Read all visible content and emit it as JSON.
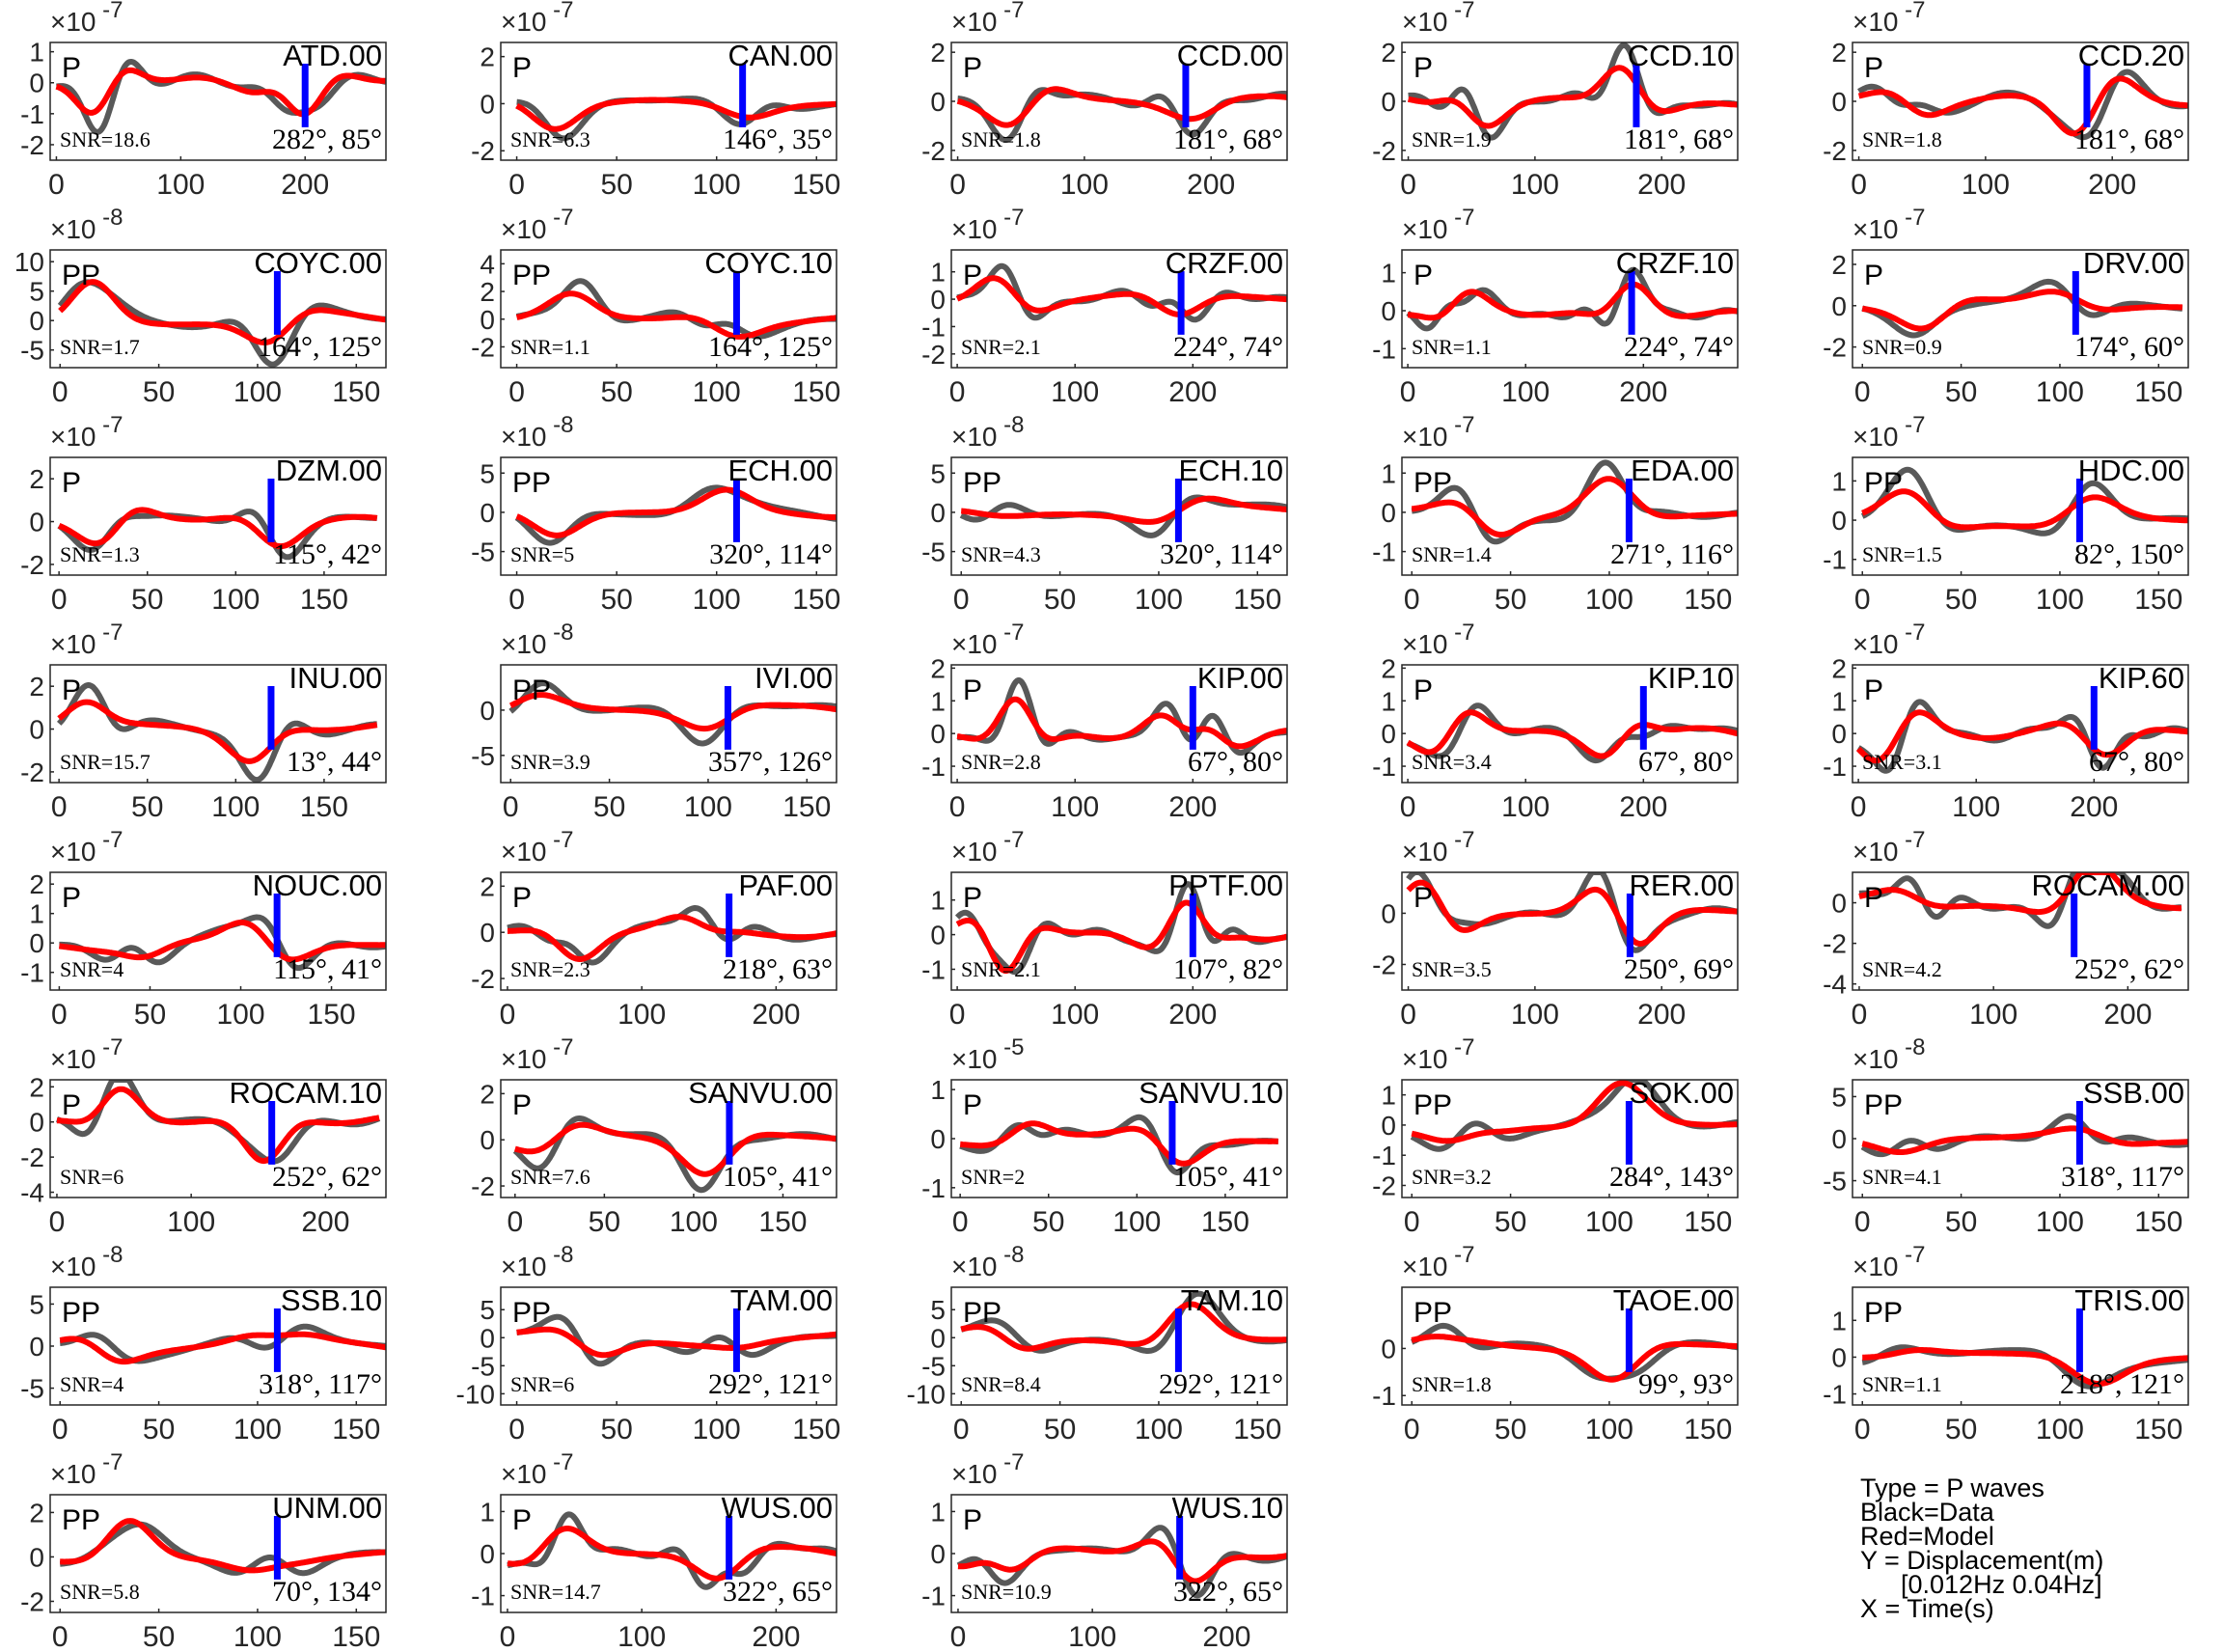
{
  "legend": {
    "type": "Type = P waves",
    "data": "Black=Data",
    "model": "Red=Model",
    "y": "Y = Displacement(m)",
    "band": "[0.012Hz 0.04Hz]",
    "x": "X = Time(s)"
  },
  "colors": {
    "data": "#595959",
    "model": "#ff0000",
    "marker": "#0000ff",
    "axes": "#262626"
  },
  "chart_data": [
    {
      "type": "line",
      "station": "ATD.00",
      "phase": "P",
      "snr": "SNR=18.6",
      "az": "282°, 85°",
      "exp": "-7",
      "xticks": [
        0,
        100,
        200
      ],
      "xlim": [
        -5,
        265
      ],
      "yticks": [
        -2,
        -1,
        0,
        1
      ],
      "ylim": [
        -2.5,
        1.3
      ],
      "pick": 200,
      "amp": 1.6,
      "seed": 3
    },
    {
      "type": "line",
      "station": "CAN.00",
      "phase": "P",
      "snr": "SNR=6.3",
      "az": "146°, 35°",
      "exp": "-7",
      "xticks": [
        0,
        50,
        100,
        150
      ],
      "xlim": [
        -8,
        160
      ],
      "yticks": [
        -2,
        0,
        2
      ],
      "ylim": [
        -2.4,
        2.6
      ],
      "pick": 113,
      "amp": 1.5,
      "seed": 5
    },
    {
      "type": "line",
      "station": "CCD.00",
      "phase": "P",
      "snr": "SNR=1.8",
      "az": "181°, 68°",
      "exp": "-7",
      "xticks": [
        0,
        100,
        200
      ],
      "xlim": [
        -5,
        260
      ],
      "yticks": [
        -2,
        0,
        2
      ],
      "ylim": [
        -2.4,
        2.4
      ],
      "pick": 180,
      "amp": 2.0,
      "seed": 7
    },
    {
      "type": "line",
      "station": "CCD.10",
      "phase": "P",
      "snr": "SNR=1.9",
      "az": "181°, 68°",
      "exp": "-7",
      "xticks": [
        0,
        100,
        200
      ],
      "xlim": [
        -5,
        260
      ],
      "yticks": [
        -2,
        0,
        2
      ],
      "ylim": [
        -2.4,
        2.4
      ],
      "pick": 180,
      "amp": 2.0,
      "seed": 9
    },
    {
      "type": "line",
      "station": "CCD.20",
      "phase": "P",
      "snr": "SNR=1.8",
      "az": "181°, 68°",
      "exp": "-7",
      "xticks": [
        0,
        100,
        200
      ],
      "xlim": [
        -5,
        260
      ],
      "yticks": [
        -2,
        0,
        2
      ],
      "ylim": [
        -2.4,
        2.4
      ],
      "pick": 180,
      "amp": 2.0,
      "seed": 11
    },
    {
      "type": "line",
      "station": "COYC.00",
      "phase": "PP",
      "snr": "SNR=1.7",
      "az": "164°, 125°",
      "exp": "-8",
      "xticks": [
        0,
        50,
        100,
        150
      ],
      "xlim": [
        -5,
        165
      ],
      "yticks": [
        -5,
        0,
        5,
        10
      ],
      "ylim": [
        -8,
        12
      ],
      "pick": 110,
      "amp": 9,
      "seed": 13
    },
    {
      "type": "line",
      "station": "COYC.10",
      "phase": "PP",
      "snr": "SNR=1.1",
      "az": "164°, 125°",
      "exp": "-7",
      "xticks": [
        0,
        50,
        100,
        150
      ],
      "xlim": [
        -8,
        160
      ],
      "yticks": [
        -2,
        0,
        2,
        4
      ],
      "ylim": [
        -3.5,
        5
      ],
      "pick": 110,
      "amp": 3,
      "seed": 15
    },
    {
      "type": "line",
      "station": "CRZF.00",
      "phase": "P",
      "snr": "SNR=2.1",
      "az": "224°, 74°",
      "exp": "-7",
      "xticks": [
        0,
        100,
        200
      ],
      "xlim": [
        -5,
        280
      ],
      "yticks": [
        -2,
        -1,
        0,
        1
      ],
      "ylim": [
        -2.5,
        1.8
      ],
      "pick": 190,
      "amp": 1.6,
      "seed": 17
    },
    {
      "type": "line",
      "station": "CRZF.10",
      "phase": "P",
      "snr": "SNR=1.1",
      "az": "224°, 74°",
      "exp": "-7",
      "xticks": [
        0,
        100,
        200
      ],
      "xlim": [
        -5,
        280
      ],
      "yticks": [
        -1,
        0,
        1
      ],
      "ylim": [
        -1.5,
        1.6
      ],
      "pick": 190,
      "amp": 1.1,
      "seed": 19
    },
    {
      "type": "line",
      "station": "DRV.00",
      "phase": "P",
      "snr": "SNR=0.9",
      "az": "174°, 60°",
      "exp": "-7",
      "xticks": [
        0,
        50,
        100,
        150
      ],
      "xlim": [
        -5,
        165
      ],
      "yticks": [
        -2,
        0,
        2
      ],
      "ylim": [
        -3,
        2.7
      ],
      "pick": 108,
      "amp": 2.2,
      "seed": 21
    },
    {
      "type": "line",
      "station": "DZM.00",
      "phase": "P",
      "snr": "SNR=1.3",
      "az": "115°, 42°",
      "exp": "-7",
      "xticks": [
        0,
        50,
        100,
        150
      ],
      "xlim": [
        -5,
        185
      ],
      "yticks": [
        -2,
        0,
        2
      ],
      "ylim": [
        -2.5,
        3
      ],
      "pick": 120,
      "amp": 2.0,
      "seed": 23
    },
    {
      "type": "line",
      "station": "ECH.00",
      "phase": "PP",
      "snr": "SNR=5",
      "az": "320°, 114°",
      "exp": "-8",
      "xticks": [
        0,
        50,
        100,
        150
      ],
      "xlim": [
        -8,
        160
      ],
      "yticks": [
        -5,
        0,
        5
      ],
      "ylim": [
        -8,
        7
      ],
      "pick": 110,
      "amp": 5.5,
      "seed": 25
    },
    {
      "type": "line",
      "station": "ECH.10",
      "phase": "PP",
      "snr": "SNR=4.3",
      "az": "320°, 114°",
      "exp": "-8",
      "xticks": [
        0,
        50,
        100,
        150
      ],
      "xlim": [
        -5,
        165
      ],
      "yticks": [
        -5,
        0,
        5
      ],
      "ylim": [
        -8,
        7
      ],
      "pick": 110,
      "amp": 5.5,
      "seed": 27
    },
    {
      "type": "line",
      "station": "EDA.00",
      "phase": "PP",
      "snr": "SNR=1.4",
      "az": "271°, 116°",
      "exp": "-7",
      "xticks": [
        0,
        50,
        100,
        150
      ],
      "xlim": [
        -5,
        165
      ],
      "yticks": [
        -1,
        0,
        1
      ],
      "ylim": [
        -1.6,
        1.4
      ],
      "pick": 110,
      "amp": 1.2,
      "seed": 29
    },
    {
      "type": "line",
      "station": "HDC.00",
      "phase": "PP",
      "snr": "SNR=1.5",
      "az": "82°, 150°",
      "exp": "-7",
      "xticks": [
        0,
        50,
        100,
        150
      ],
      "xlim": [
        -5,
        165
      ],
      "yticks": [
        -1,
        0,
        1
      ],
      "ylim": [
        -1.4,
        1.6
      ],
      "pick": 110,
      "amp": 1.2,
      "seed": 31
    },
    {
      "type": "line",
      "station": "INU.00",
      "phase": "P",
      "snr": "SNR=15.7",
      "az": "13°, 44°",
      "exp": "-7",
      "xticks": [
        0,
        50,
        100,
        150
      ],
      "xlim": [
        -5,
        185
      ],
      "yticks": [
        -2,
        0,
        2
      ],
      "ylim": [
        -2.5,
        3
      ],
      "pick": 120,
      "amp": 2.4,
      "seed": 33
    },
    {
      "type": "line",
      "station": "IVI.00",
      "phase": "PP",
      "snr": "SNR=3.9",
      "az": "357°, 126°",
      "exp": "-8",
      "xticks": [
        0,
        50,
        100,
        150
      ],
      "xlim": [
        -5,
        165
      ],
      "yticks": [
        -5,
        0
      ],
      "ylim": [
        -8,
        5
      ],
      "pick": 110,
      "amp": 5,
      "seed": 35
    },
    {
      "type": "line",
      "station": "KIP.00",
      "phase": "P",
      "snr": "SNR=2.8",
      "az": "67°, 80°",
      "exp": "-7",
      "xticks": [
        0,
        100,
        200
      ],
      "xlim": [
        -5,
        280
      ],
      "yticks": [
        -1,
        0,
        1,
        2
      ],
      "ylim": [
        -1.5,
        2.1
      ],
      "pick": 200,
      "amp": 1.4,
      "seed": 37
    },
    {
      "type": "line",
      "station": "KIP.10",
      "phase": "P",
      "snr": "SNR=3.4",
      "az": "67°, 80°",
      "exp": "-7",
      "xticks": [
        0,
        100,
        200
      ],
      "xlim": [
        -5,
        280
      ],
      "yticks": [
        -1,
        0,
        1,
        2
      ],
      "ylim": [
        -1.5,
        2.1
      ],
      "pick": 200,
      "amp": 1.4,
      "seed": 39
    },
    {
      "type": "line",
      "station": "KIP.60",
      "phase": "P",
      "snr": "SNR=3.1",
      "az": "67°, 80°",
      "exp": "-7",
      "xticks": [
        0,
        100,
        200
      ],
      "xlim": [
        -5,
        280
      ],
      "yticks": [
        -1,
        0,
        1,
        2
      ],
      "ylim": [
        -1.5,
        2.1
      ],
      "pick": 200,
      "amp": 1.4,
      "seed": 41
    },
    {
      "type": "line",
      "station": "NOUC.00",
      "phase": "P",
      "snr": "SNR=4",
      "az": "115°, 41°",
      "exp": "-7",
      "xticks": [
        0,
        50,
        100,
        150
      ],
      "xlim": [
        -5,
        180
      ],
      "yticks": [
        -1,
        0,
        1,
        2
      ],
      "ylim": [
        -1.6,
        2.4
      ],
      "pick": 120,
      "amp": 1.6,
      "seed": 43
    },
    {
      "type": "line",
      "station": "PAF.00",
      "phase": "P",
      "snr": "SNR=2.3",
      "az": "218°, 63°",
      "exp": "-7",
      "xticks": [
        0,
        100,
        200
      ],
      "xlim": [
        -5,
        245
      ],
      "yticks": [
        -2,
        0,
        2
      ],
      "ylim": [
        -2.5,
        2.6
      ],
      "pick": 165,
      "amp": 2.0,
      "seed": 45
    },
    {
      "type": "line",
      "station": "PPTF.00",
      "phase": "P",
      "snr": "SNR=2.1",
      "az": "107°, 82°",
      "exp": "-7",
      "xticks": [
        0,
        100,
        200
      ],
      "xlim": [
        -5,
        280
      ],
      "yticks": [
        -1,
        0,
        1
      ],
      "ylim": [
        -1.6,
        1.8
      ],
      "pick": 200,
      "amp": 1.4,
      "seed": 47
    },
    {
      "type": "line",
      "station": "RER.00",
      "phase": "P",
      "snr": "SNR=3.5",
      "az": "250°, 69°",
      "exp": "-7",
      "xticks": [
        0,
        100,
        200
      ],
      "xlim": [
        -5,
        260
      ],
      "yticks": [
        -2,
        0
      ],
      "ylim": [
        -3,
        1.6
      ],
      "pick": 175,
      "amp": 2.0,
      "seed": 49
    },
    {
      "type": "line",
      "station": "ROCAM.00",
      "phase": "P",
      "snr": "SNR=4.2",
      "az": "252°, 62°",
      "exp": "-7",
      "xticks": [
        0,
        100,
        200
      ],
      "xlim": [
        -5,
        245
      ],
      "yticks": [
        -4,
        -2,
        0
      ],
      "ylim": [
        -4.3,
        1.5
      ],
      "pick": 160,
      "amp": 2.8,
      "seed": 51
    },
    {
      "type": "line",
      "station": "ROCAM.10",
      "phase": "P",
      "snr": "SNR=6",
      "az": "252°, 62°",
      "exp": "-7",
      "xticks": [
        0,
        100,
        200
      ],
      "xlim": [
        -5,
        245
      ],
      "yticks": [
        -4,
        -2,
        0,
        2
      ],
      "ylim": [
        -4.3,
        2.4
      ],
      "pick": 160,
      "amp": 2.8,
      "seed": 53
    },
    {
      "type": "line",
      "station": "SANVU.00",
      "phase": "P",
      "snr": "SNR=7.6",
      "az": "105°, 41°",
      "exp": "-7",
      "xticks": [
        0,
        50,
        100,
        150
      ],
      "xlim": [
        -8,
        180
      ],
      "yticks": [
        -2,
        0,
        2
      ],
      "ylim": [
        -2.5,
        2.6
      ],
      "pick": 120,
      "amp": 2.0,
      "seed": 55
    },
    {
      "type": "line",
      "station": "SANVU.10",
      "phase": "P",
      "snr": "SNR=2",
      "az": "105°, 41°",
      "exp": "-5",
      "xticks": [
        0,
        50,
        100,
        150
      ],
      "xlim": [
        -5,
        185
      ],
      "yticks": [
        -1,
        0,
        1
      ],
      "ylim": [
        -1.2,
        1.2
      ],
      "pick": 120,
      "amp": 0.9,
      "seed": 57
    },
    {
      "type": "line",
      "station": "SOK.00",
      "phase": "PP",
      "snr": "SNR=3.2",
      "az": "284°, 143°",
      "exp": "-7",
      "xticks": [
        0,
        50,
        100,
        150
      ],
      "xlim": [
        -5,
        165
      ],
      "yticks": [
        -2,
        -1,
        0,
        1
      ],
      "ylim": [
        -2.4,
        1.5
      ],
      "pick": 110,
      "amp": 1.8,
      "seed": 59
    },
    {
      "type": "line",
      "station": "SSB.00",
      "phase": "PP",
      "snr": "SNR=4.1",
      "az": "318°, 117°",
      "exp": "-8",
      "xticks": [
        0,
        50,
        100,
        150
      ],
      "xlim": [
        -5,
        165
      ],
      "yticks": [
        -5,
        0,
        5
      ],
      "ylim": [
        -7,
        7
      ],
      "pick": 110,
      "amp": 5.5,
      "seed": 61
    },
    {
      "type": "line",
      "station": "SSB.10",
      "phase": "PP",
      "snr": "SNR=4",
      "az": "318°, 117°",
      "exp": "-8",
      "xticks": [
        0,
        50,
        100,
        150
      ],
      "xlim": [
        -5,
        165
      ],
      "yticks": [
        -5,
        0,
        5
      ],
      "ylim": [
        -7,
        7
      ],
      "pick": 110,
      "amp": 5.5,
      "seed": 63
    },
    {
      "type": "line",
      "station": "TAM.00",
      "phase": "PP",
      "snr": "SNR=6",
      "az": "292°, 121°",
      "exp": "-8",
      "xticks": [
        0,
        50,
        100,
        150
      ],
      "xlim": [
        -8,
        160
      ],
      "yticks": [
        -10,
        -5,
        0,
        5
      ],
      "ylim": [
        -12,
        9
      ],
      "pick": 110,
      "amp": 8,
      "seed": 65
    },
    {
      "type": "line",
      "station": "TAM.10",
      "phase": "PP",
      "snr": "SNR=8.4",
      "az": "292°, 121°",
      "exp": "-8",
      "xticks": [
        0,
        50,
        100,
        150
      ],
      "xlim": [
        -5,
        165
      ],
      "yticks": [
        -10,
        -5,
        0,
        5
      ],
      "ylim": [
        -12,
        9
      ],
      "pick": 110,
      "amp": 8,
      "seed": 67
    },
    {
      "type": "line",
      "station": "TAOE.00",
      "phase": "PP",
      "snr": "SNR=1.8",
      "az": "99°, 93°",
      "exp": "-7",
      "xticks": [
        0,
        50,
        100,
        150
      ],
      "xlim": [
        -5,
        165
      ],
      "yticks": [
        -1,
        0
      ],
      "ylim": [
        -1.2,
        1.3
      ],
      "pick": 110,
      "amp": 0.9,
      "seed": 69
    },
    {
      "type": "line",
      "station": "TRIS.00",
      "phase": "PP",
      "snr": "SNR=1.1",
      "az": "218°, 121°",
      "exp": "-7",
      "xticks": [
        0,
        50,
        100,
        150
      ],
      "xlim": [
        -5,
        165
      ],
      "yticks": [
        -1,
        0,
        1
      ],
      "ylim": [
        -1.3,
        1.9
      ],
      "pick": 110,
      "amp": 1.1,
      "seed": 71
    },
    {
      "type": "line",
      "station": "UNM.00",
      "phase": "PP",
      "snr": "SNR=5.8",
      "az": "70°, 134°",
      "exp": "-7",
      "xticks": [
        0,
        50,
        100,
        150
      ],
      "xlim": [
        -5,
        165
      ],
      "yticks": [
        -2,
        0,
        2
      ],
      "ylim": [
        -2.5,
        2.8
      ],
      "pick": 110,
      "amp": 2.2,
      "seed": 73
    },
    {
      "type": "line",
      "station": "WUS.00",
      "phase": "P",
      "snr": "SNR=14.7",
      "az": "322°, 65°",
      "exp": "-7",
      "xticks": [
        0,
        100,
        200
      ],
      "xlim": [
        -5,
        245
      ],
      "yticks": [
        -1,
        0,
        1
      ],
      "ylim": [
        -1.4,
        1.4
      ],
      "pick": 165,
      "amp": 1.1,
      "seed": 75
    },
    {
      "type": "line",
      "station": "WUS.10",
      "phase": "P",
      "snr": "SNR=10.9",
      "az": "322°, 65°",
      "exp": "-7",
      "xticks": [
        0,
        100,
        200
      ],
      "xlim": [
        -5,
        245
      ],
      "yticks": [
        -1,
        0,
        1
      ],
      "ylim": [
        -1.4,
        1.4
      ],
      "pick": 165,
      "amp": 1.1,
      "seed": 77
    }
  ]
}
